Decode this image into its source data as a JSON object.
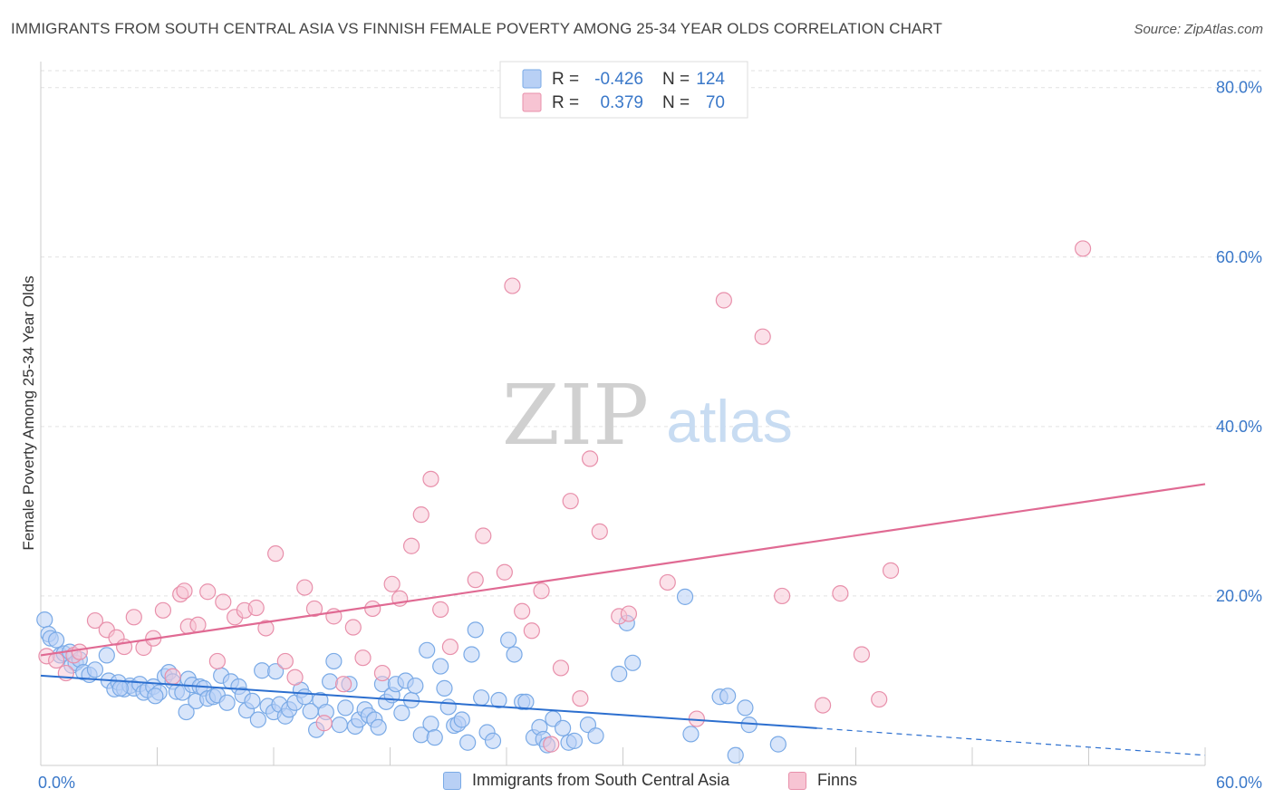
{
  "title": "IMMIGRANTS FROM SOUTH CENTRAL ASIA VS FINNISH FEMALE POVERTY AMONG 25-34 YEAR OLDS CORRELATION CHART",
  "source": "Source: ZipAtlas.com",
  "watermark": {
    "zip": "ZIP",
    "atlas": "atlas"
  },
  "colors": {
    "blue": "#7aaae6",
    "blue_fill": "#b8d0f5",
    "blue_line": "#2c6fcf",
    "pink": "#e890ab",
    "pink_fill": "#f7c4d3",
    "pink_line": "#e06a93",
    "axis_text": "#3a78c9"
  },
  "legend_box": {
    "rows": [
      {
        "r_label": "R =",
        "r_value": "-0.426",
        "n_label": "N =",
        "n_value": "124"
      },
      {
        "r_label": "R =",
        "r_value": "0.379",
        "n_label": "N =",
        "n_value": "70"
      }
    ]
  },
  "legend_bottom": [
    "Immigrants from South Central Asia",
    "Finns"
  ],
  "chart_data": {
    "type": "scatter",
    "xlabel": "",
    "ylabel": "Female Poverty Among 25-34 Year Olds",
    "xlim": [
      0,
      60
    ],
    "ylim": [
      0,
      82
    ],
    "x_tick_labels": [
      "0.0%",
      "60.0%"
    ],
    "y_ticks": [
      20,
      40,
      60,
      80
    ],
    "y_tick_labels": [
      "20.0%",
      "40.0%",
      "60.0%",
      "80.0%"
    ],
    "grid": true,
    "legend_position": "top-center",
    "series": [
      {
        "name": "Immigrants from South Central Asia",
        "trend": {
          "x": [
            0,
            40
          ],
          "y": [
            10.6,
            4.4
          ],
          "dashed_to": [
            60,
            1.2
          ]
        },
        "points": [
          [
            0.2,
            17.2
          ],
          [
            0.4,
            15.5
          ],
          [
            0.5,
            15.0
          ],
          [
            0.8,
            14.8
          ],
          [
            1.0,
            13.0
          ],
          [
            1.2,
            13.2
          ],
          [
            1.5,
            13.4
          ],
          [
            1.6,
            11.8
          ],
          [
            1.8,
            12.1
          ],
          [
            2.0,
            12.5
          ],
          [
            2.2,
            11.0
          ],
          [
            2.5,
            10.7
          ],
          [
            2.8,
            11.3
          ],
          [
            3.4,
            13.0
          ],
          [
            3.5,
            10.0
          ],
          [
            3.8,
            9.0
          ],
          [
            4.0,
            9.8
          ],
          [
            4.3,
            9.0
          ],
          [
            4.6,
            9.4
          ],
          [
            4.8,
            9.1
          ],
          [
            5.1,
            9.6
          ],
          [
            5.3,
            8.6
          ],
          [
            5.5,
            8.9
          ],
          [
            5.8,
            9.3
          ],
          [
            6.1,
            8.6
          ],
          [
            6.4,
            10.5
          ],
          [
            6.6,
            11.0
          ],
          [
            6.8,
            9.9
          ],
          [
            7.0,
            8.7
          ],
          [
            7.3,
            8.6
          ],
          [
            7.6,
            10.2
          ],
          [
            7.8,
            9.5
          ],
          [
            7.5,
            6.3
          ],
          [
            8.0,
            7.6
          ],
          [
            8.2,
            9.3
          ],
          [
            8.4,
            9.1
          ],
          [
            8.6,
            7.9
          ],
          [
            8.9,
            8.1
          ],
          [
            9.1,
            8.3
          ],
          [
            9.3,
            10.6
          ],
          [
            9.6,
            7.4
          ],
          [
            9.8,
            9.9
          ],
          [
            10.2,
            9.3
          ],
          [
            10.4,
            8.3
          ],
          [
            10.6,
            6.5
          ],
          [
            10.9,
            7.6
          ],
          [
            11.2,
            5.4
          ],
          [
            11.4,
            11.2
          ],
          [
            11.7,
            7.0
          ],
          [
            12.0,
            6.3
          ],
          [
            12.3,
            7.2
          ],
          [
            12.6,
            5.8
          ],
          [
            12.8,
            6.6
          ],
          [
            13.1,
            7.4
          ],
          [
            13.4,
            8.9
          ],
          [
            13.6,
            8.1
          ],
          [
            13.9,
            6.4
          ],
          [
            14.2,
            4.2
          ],
          [
            14.4,
            7.7
          ],
          [
            14.7,
            6.3
          ],
          [
            14.9,
            9.9
          ],
          [
            15.1,
            12.3
          ],
          [
            15.4,
            4.8
          ],
          [
            15.7,
            6.8
          ],
          [
            15.9,
            9.6
          ],
          [
            16.2,
            4.6
          ],
          [
            16.4,
            5.4
          ],
          [
            16.7,
            6.6
          ],
          [
            16.9,
            5.9
          ],
          [
            17.2,
            5.4
          ],
          [
            17.4,
            4.5
          ],
          [
            17.6,
            9.6
          ],
          [
            17.8,
            7.5
          ],
          [
            18.1,
            8.3
          ],
          [
            18.3,
            9.6
          ],
          [
            18.6,
            6.2
          ],
          [
            18.8,
            10.0
          ],
          [
            19.1,
            7.7
          ],
          [
            19.3,
            9.4
          ],
          [
            19.6,
            3.6
          ],
          [
            19.9,
            13.6
          ],
          [
            20.1,
            4.9
          ],
          [
            20.3,
            3.3
          ],
          [
            20.6,
            11.7
          ],
          [
            20.8,
            9.1
          ],
          [
            21.0,
            6.9
          ],
          [
            21.3,
            4.7
          ],
          [
            21.5,
            4.9
          ],
          [
            21.7,
            5.4
          ],
          [
            22.0,
            2.7
          ],
          [
            22.2,
            13.1
          ],
          [
            22.4,
            16.0
          ],
          [
            22.7,
            8.0
          ],
          [
            23.0,
            3.9
          ],
          [
            23.3,
            2.9
          ],
          [
            23.6,
            7.7
          ],
          [
            24.1,
            14.8
          ],
          [
            24.4,
            13.1
          ],
          [
            24.8,
            7.5
          ],
          [
            25.0,
            7.5
          ],
          [
            25.4,
            3.3
          ],
          [
            25.7,
            4.5
          ],
          [
            25.9,
            3.1
          ],
          [
            26.1,
            2.4
          ],
          [
            26.4,
            5.5
          ],
          [
            26.9,
            4.4
          ],
          [
            27.2,
            2.7
          ],
          [
            27.5,
            2.9
          ],
          [
            28.2,
            4.8
          ],
          [
            28.6,
            3.5
          ],
          [
            29.8,
            10.8
          ],
          [
            30.2,
            16.8
          ],
          [
            30.5,
            12.1
          ],
          [
            33.2,
            19.9
          ],
          [
            33.5,
            3.7
          ],
          [
            35.0,
            8.1
          ],
          [
            35.4,
            8.2
          ],
          [
            35.8,
            1.2
          ],
          [
            36.3,
            6.8
          ],
          [
            36.5,
            4.8
          ],
          [
            38.0,
            2.5
          ],
          [
            12.1,
            11.1
          ],
          [
            4.1,
            9.1
          ],
          [
            5.9,
            8.2
          ]
        ]
      },
      {
        "name": "Finns",
        "trend": {
          "x": [
            0,
            60
          ],
          "y": [
            13.0,
            33.2
          ]
        },
        "points": [
          [
            0.3,
            12.9
          ],
          [
            0.8,
            12.4
          ],
          [
            1.3,
            10.9
          ],
          [
            1.7,
            13.0
          ],
          [
            2.0,
            13.4
          ],
          [
            2.8,
            17.1
          ],
          [
            3.4,
            16.0
          ],
          [
            3.9,
            15.1
          ],
          [
            4.3,
            14.0
          ],
          [
            4.8,
            17.5
          ],
          [
            5.3,
            13.9
          ],
          [
            5.8,
            15.0
          ],
          [
            6.3,
            18.3
          ],
          [
            6.8,
            10.5
          ],
          [
            7.2,
            20.2
          ],
          [
            7.6,
            16.4
          ],
          [
            8.1,
            16.6
          ],
          [
            8.6,
            20.5
          ],
          [
            9.1,
            12.3
          ],
          [
            9.4,
            19.3
          ],
          [
            10.0,
            17.5
          ],
          [
            10.5,
            18.3
          ],
          [
            11.1,
            18.6
          ],
          [
            11.6,
            16.2
          ],
          [
            12.1,
            25.0
          ],
          [
            12.6,
            12.3
          ],
          [
            13.1,
            10.4
          ],
          [
            13.6,
            21.0
          ],
          [
            14.1,
            18.5
          ],
          [
            14.6,
            5.0
          ],
          [
            15.1,
            17.6
          ],
          [
            15.6,
            9.6
          ],
          [
            16.1,
            16.3
          ],
          [
            16.6,
            12.7
          ],
          [
            17.1,
            18.5
          ],
          [
            17.6,
            10.9
          ],
          [
            18.1,
            21.4
          ],
          [
            18.5,
            19.7
          ],
          [
            19.1,
            25.9
          ],
          [
            19.6,
            29.6
          ],
          [
            20.1,
            33.8
          ],
          [
            20.6,
            18.4
          ],
          [
            21.1,
            14.0
          ],
          [
            22.4,
            21.9
          ],
          [
            22.8,
            27.1
          ],
          [
            23.9,
            22.8
          ],
          [
            24.3,
            56.6
          ],
          [
            24.8,
            18.2
          ],
          [
            25.3,
            15.9
          ],
          [
            25.8,
            20.6
          ],
          [
            26.3,
            2.5
          ],
          [
            26.8,
            11.5
          ],
          [
            27.3,
            31.2
          ],
          [
            27.8,
            7.9
          ],
          [
            28.3,
            36.2
          ],
          [
            28.8,
            27.6
          ],
          [
            29.8,
            17.6
          ],
          [
            30.3,
            17.9
          ],
          [
            32.3,
            21.6
          ],
          [
            33.8,
            5.5
          ],
          [
            35.2,
            54.9
          ],
          [
            37.2,
            50.6
          ],
          [
            38.2,
            20.0
          ],
          [
            40.3,
            7.1
          ],
          [
            41.2,
            20.3
          ],
          [
            42.3,
            13.1
          ],
          [
            43.2,
            7.8
          ],
          [
            43.8,
            23.0
          ],
          [
            53.7,
            61.0
          ],
          [
            7.4,
            20.6
          ]
        ]
      }
    ]
  }
}
